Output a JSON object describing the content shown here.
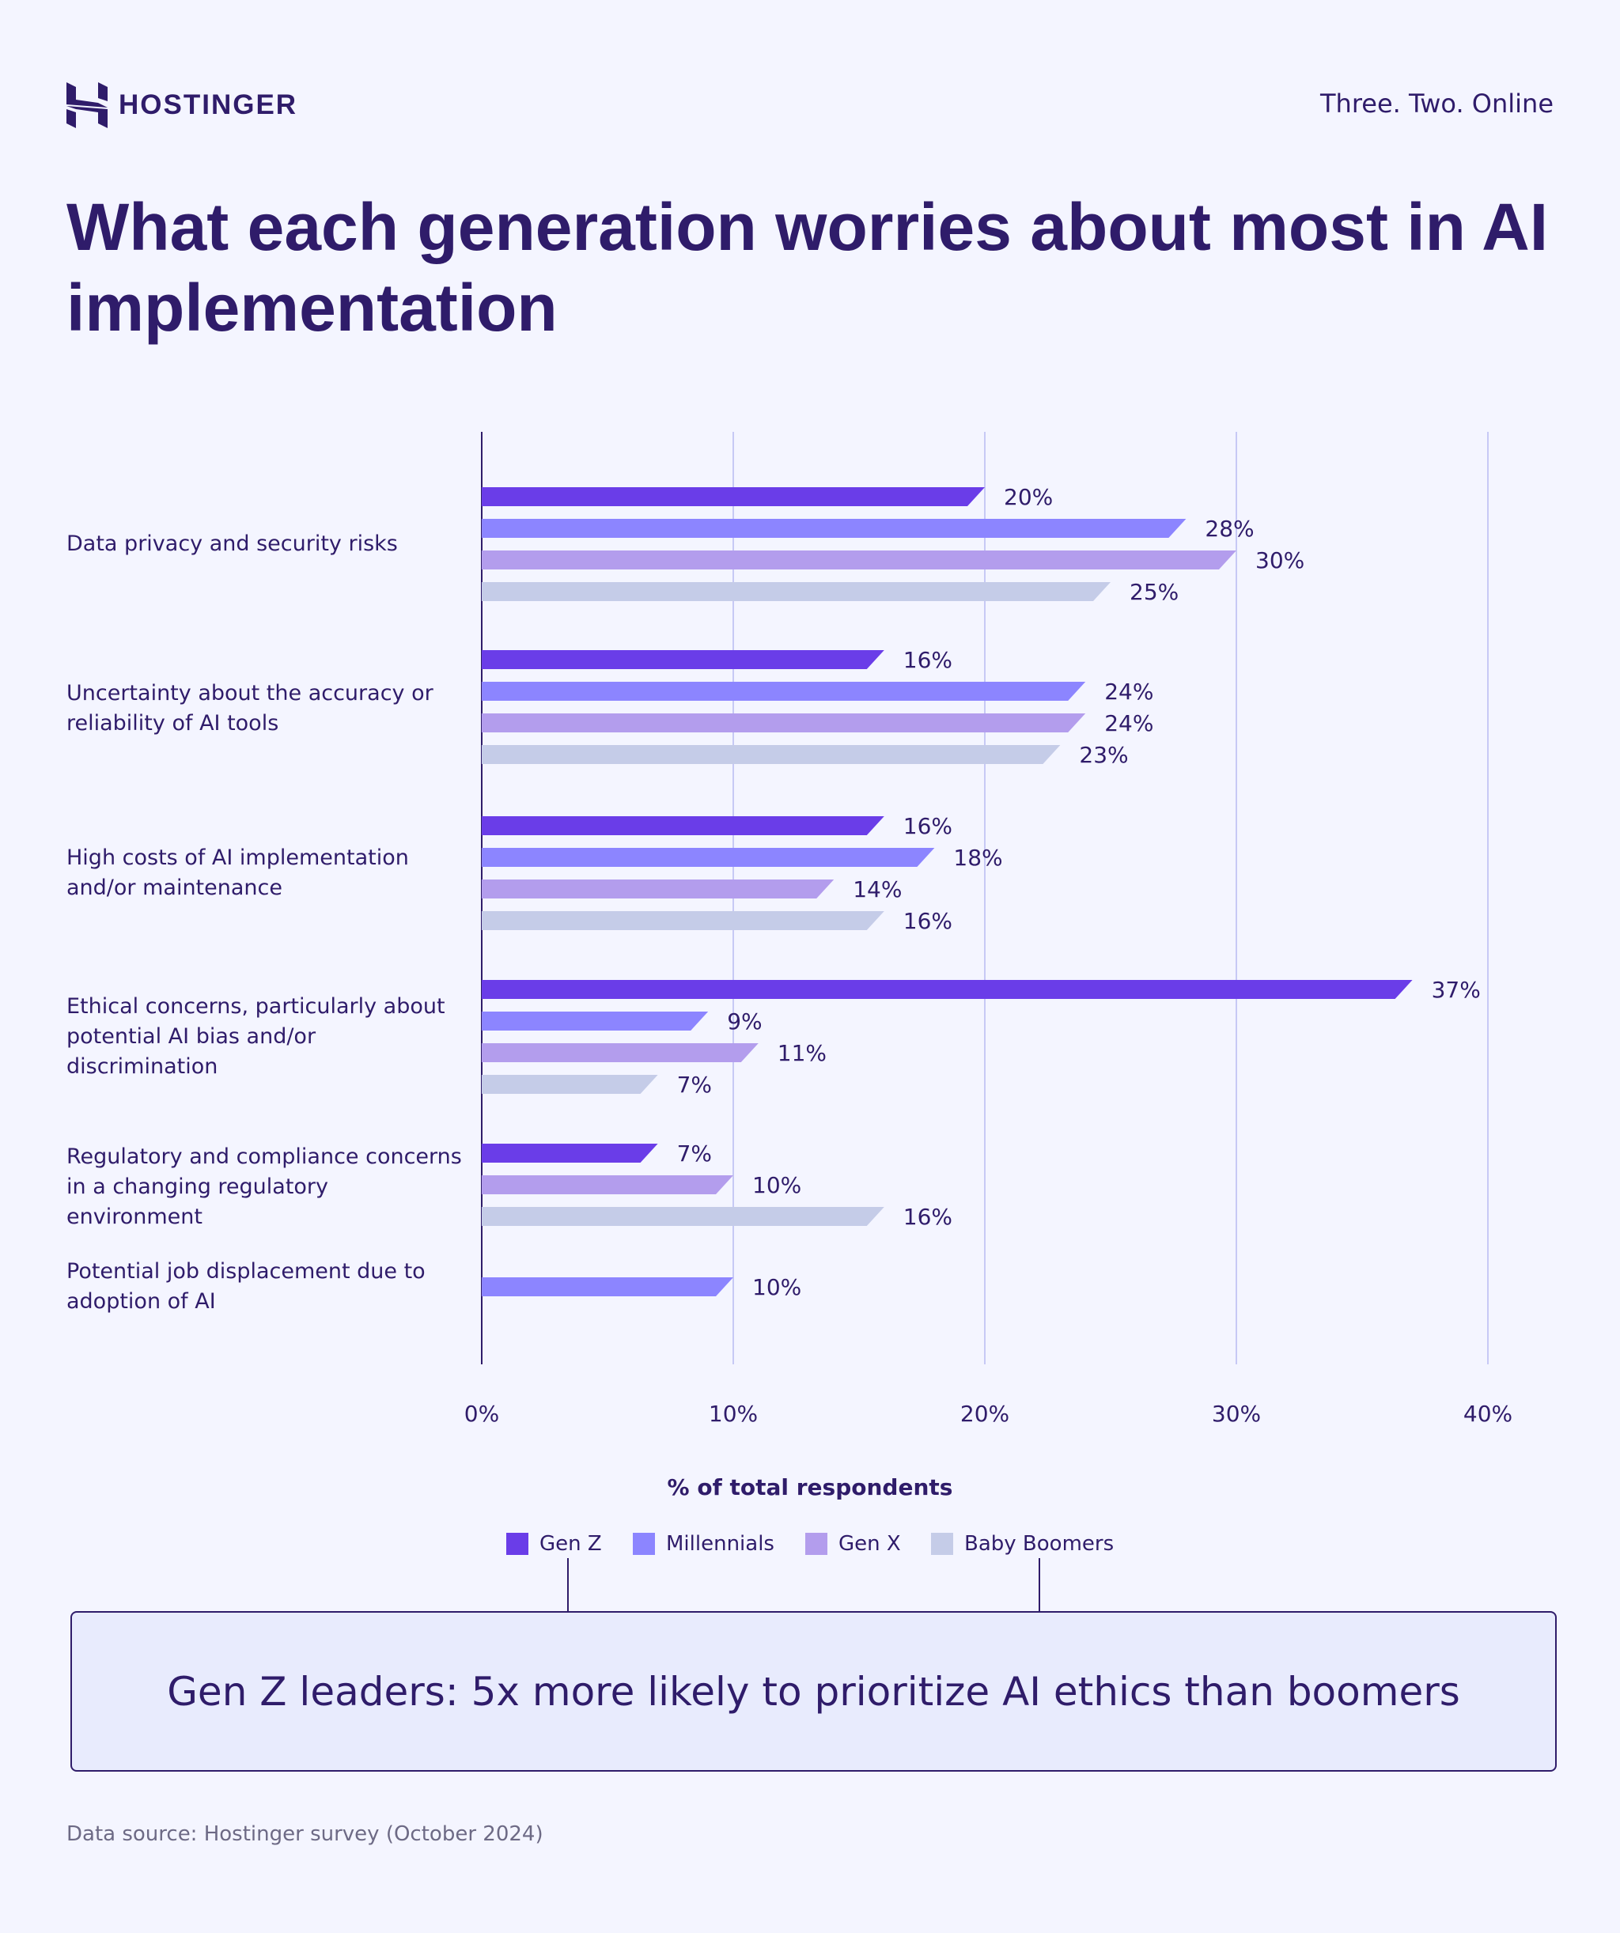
{
  "header": {
    "brand": "HOSTINGER",
    "tagline": "Three. Two. Online"
  },
  "title": "What each generation worries about most in AI implementation",
  "chart_data": {
    "type": "bar",
    "orientation": "horizontal",
    "categories": [
      "Data privacy and security risks",
      "Uncertainty about the accuracy or reliability of AI tools",
      "High costs of AI implementation and/or maintenance",
      "Ethical concerns, particularly about potential AI bias and/or discrimination",
      "Regulatory and compliance concerns in a changing regulatory environment",
      "Potential job displacement due to adoption of AI"
    ],
    "series": [
      {
        "name": "Gen Z",
        "color": "#6a3de8",
        "values": [
          20,
          16,
          16,
          37,
          7,
          null
        ]
      },
      {
        "name": "Millennials",
        "color": "#8c85ff",
        "values": [
          28,
          24,
          18,
          9,
          null,
          10
        ]
      },
      {
        "name": "Gen X",
        "color": "#b39ded",
        "values": [
          30,
          24,
          14,
          11,
          10,
          null
        ]
      },
      {
        "name": "Baby Boomers",
        "color": "#c5cce8",
        "values": [
          25,
          23,
          16,
          7,
          16,
          null
        ]
      }
    ],
    "xlabel": "% of total respondents",
    "xlim": [
      0,
      40
    ],
    "xticks": [
      "0%",
      "10%",
      "20%",
      "30%",
      "40%"
    ],
    "value_suffix": "%",
    "grid": true,
    "legend": "bottom"
  },
  "callout": "Gen Z leaders: 5x more likely to prioritize AI ethics than boomers",
  "source": "Data source: Hostinger survey (October 2024)"
}
